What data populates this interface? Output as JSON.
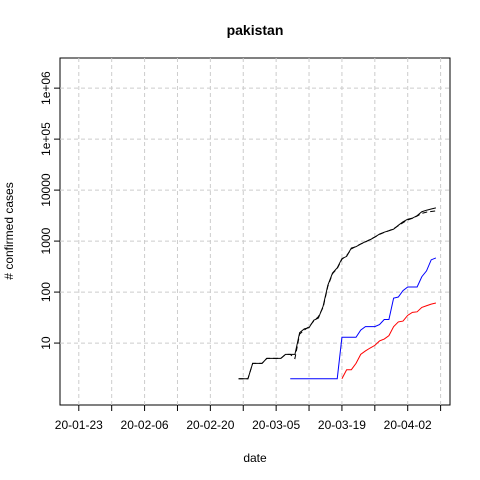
{
  "chart_data": {
    "type": "line",
    "title": "pakistan",
    "xlabel": "date",
    "ylabel": "# confirmed cases",
    "log_y": true,
    "grid": true,
    "xlim": [
      "2020-01-19",
      "2020-04-11"
    ],
    "xticks": [
      {
        "value": "2020-01-23",
        "label": "20-01-23"
      },
      {
        "value": "2020-02-06",
        "label": "20-02-06"
      },
      {
        "value": "2020-02-20",
        "label": "20-02-20"
      },
      {
        "value": "2020-03-05",
        "label": "20-03-05"
      },
      {
        "value": "2020-03-19",
        "label": "20-03-19"
      },
      {
        "value": "2020-04-02",
        "label": "20-04-02"
      }
    ],
    "xminor_ticks": [
      "2020-01-30",
      "2020-02-13",
      "2020-02-27",
      "2020-03-12",
      "2020-03-26",
      "2020-04-09"
    ],
    "ylim": [
      0.61,
      3900000
    ],
    "yticks": [
      10,
      100,
      1000,
      10000,
      {
        "value": 100000,
        "label": "1e+05"
      },
      {
        "value": 1000000,
        "label": "1e+06"
      }
    ],
    "x": [
      "2020-02-26",
      "2020-02-27",
      "2020-02-28",
      "2020-02-29",
      "2020-03-01",
      "2020-03-02",
      "2020-03-03",
      "2020-03-04",
      "2020-03-05",
      "2020-03-06",
      "2020-03-07",
      "2020-03-08",
      "2020-03-09",
      "2020-03-10",
      "2020-03-11",
      "2020-03-12",
      "2020-03-13",
      "2020-03-14",
      "2020-03-15",
      "2020-03-16",
      "2020-03-17",
      "2020-03-18",
      "2020-03-19",
      "2020-03-20",
      "2020-03-21",
      "2020-03-22",
      "2020-03-23",
      "2020-03-24",
      "2020-03-25",
      "2020-03-26",
      "2020-03-27",
      "2020-03-28",
      "2020-03-29",
      "2020-03-30",
      "2020-03-31",
      "2020-04-01",
      "2020-04-02",
      "2020-04-03",
      "2020-04-04",
      "2020-04-05",
      "2020-04-06",
      "2020-04-07",
      "2020-04-08"
    ],
    "series": [
      {
        "color": "#000000",
        "dash": false,
        "values": [
          2,
          2,
          2,
          4,
          4,
          4,
          5,
          5,
          5,
          5,
          6,
          6,
          6,
          16,
          19,
          20,
          28,
          31,
          53,
          136,
          236,
          299,
          454,
          501,
          730,
          776,
          875,
          972,
          1063,
          1201,
          1373,
          1495,
          1597,
          1717,
          2039,
          2386,
          2686,
          2818,
          3157,
          3766,
          4035,
          4263,
          4489
        ]
      },
      {
        "color": "#000000",
        "dash": true,
        "values": [
          2,
          2,
          2,
          4,
          4,
          4,
          5,
          5,
          5,
          5,
          6,
          6,
          5,
          15,
          18,
          21,
          27,
          33,
          50,
          130,
          230,
          290,
          440,
          520,
          700,
          790,
          880,
          960,
          1080,
          1200,
          1350,
          1480,
          1600,
          1750,
          2000,
          2300,
          2600,
          2800,
          3100,
          3500,
          3700,
          3800,
          3900
        ]
      },
      {
        "color": "#0000ff",
        "dash": false,
        "values": [
          null,
          null,
          null,
          null,
          null,
          null,
          null,
          null,
          null,
          null,
          null,
          2,
          2,
          2,
          2,
          2,
          2,
          2,
          2,
          2,
          2,
          2,
          13,
          13,
          13,
          13,
          18,
          21,
          21,
          21,
          23,
          29,
          29,
          76,
          80,
          107,
          126,
          126,
          126,
          200,
          260,
          429,
          467
        ]
      },
      {
        "color": "#ff0000",
        "dash": false,
        "values": [
          null,
          null,
          null,
          null,
          null,
          null,
          null,
          null,
          null,
          null,
          null,
          null,
          null,
          null,
          null,
          null,
          null,
          null,
          null,
          null,
          null,
          null,
          2,
          3,
          3,
          4,
          6,
          7,
          8,
          9,
          11,
          12,
          14,
          21,
          26,
          27,
          35,
          40,
          41,
          50,
          54,
          58,
          61
        ]
      }
    ]
  }
}
